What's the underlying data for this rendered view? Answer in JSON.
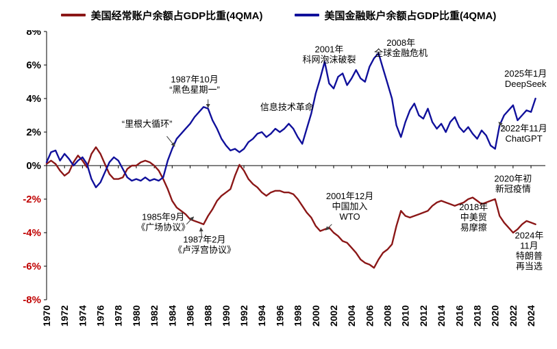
{
  "chart_data": {
    "type": "line",
    "title": "",
    "xlabel": "",
    "ylabel": "",
    "xlim": [
      1970,
      2025.6
    ],
    "ylim": [
      -8,
      8
    ],
    "grid": false,
    "legend_position": "top-center",
    "axis_color": "#000000",
    "negative_tick_color": "#C00000",
    "arrow_color": "#404040",
    "yticks": [
      {
        "v": 8,
        "label": "8%"
      },
      {
        "v": 6,
        "label": "6%"
      },
      {
        "v": 4,
        "label": "4%"
      },
      {
        "v": 2,
        "label": "2%"
      },
      {
        "v": 0,
        "label": "0%"
      },
      {
        "v": -2,
        "label": "-2%"
      },
      {
        "v": -4,
        "label": "-4%"
      },
      {
        "v": -6,
        "label": "-6%"
      },
      {
        "v": -8,
        "label": "-8%"
      }
    ],
    "xticks": [
      1970,
      1972,
      1974,
      1976,
      1978,
      1980,
      1982,
      1984,
      1986,
      1988,
      1990,
      1992,
      1994,
      1996,
      1998,
      2000,
      2002,
      2004,
      2006,
      2008,
      2010,
      2012,
      2014,
      2016,
      2018,
      2020,
      2022,
      2024
    ],
    "series": [
      {
        "name": "美国经常账户余额占GDP比重(4QMA)",
        "color": "#8B1717",
        "x_start": 1970,
        "x_step": 0.5,
        "values": [
          0.1,
          0.3,
          0.1,
          -0.3,
          -0.6,
          -0.4,
          0.2,
          0.6,
          0.3,
          -0.1,
          0.7,
          1.1,
          0.7,
          0.1,
          -0.5,
          -0.8,
          -0.8,
          -0.7,
          -0.2,
          0.0,
          0.0,
          0.2,
          0.3,
          0.2,
          0.0,
          -0.3,
          -0.8,
          -1.4,
          -2.1,
          -2.5,
          -2.7,
          -2.9,
          -3.2,
          -3.3,
          -3.4,
          -3.5,
          -3.0,
          -2.6,
          -2.1,
          -1.8,
          -1.6,
          -1.4,
          -0.6,
          0.05,
          -0.3,
          -0.8,
          -1.1,
          -1.3,
          -1.6,
          -1.8,
          -1.6,
          -1.5,
          -1.5,
          -1.6,
          -1.6,
          -1.7,
          -2.0,
          -2.4,
          -2.8,
          -3.1,
          -3.6,
          -3.9,
          -3.8,
          -3.7,
          -4.0,
          -4.2,
          -4.5,
          -4.6,
          -4.9,
          -5.2,
          -5.6,
          -5.8,
          -5.9,
          -6.1,
          -5.6,
          -5.2,
          -5.0,
          -4.7,
          -3.6,
          -2.7,
          -3.0,
          -3.1,
          -3.0,
          -2.9,
          -2.8,
          -2.7,
          -2.4,
          -2.2,
          -2.1,
          -2.2,
          -2.3,
          -2.4,
          -2.3,
          -2.2,
          -2.0,
          -1.9,
          -2.1,
          -2.3,
          -2.2,
          -2.1,
          -2.0,
          -3.0,
          -3.4,
          -3.7,
          -4.0,
          -3.8,
          -3.5,
          -3.3,
          -3.4,
          -3.5
        ]
      },
      {
        "name": "美国金融账户余额占GDP比重(4QMA)",
        "color": "#10109B",
        "x_start": 1970,
        "x_step": 0.5,
        "values": [
          0.2,
          0.8,
          0.9,
          0.3,
          0.7,
          0.4,
          0.0,
          0.3,
          0.5,
          0.1,
          -0.8,
          -1.3,
          -1.0,
          -0.4,
          0.2,
          0.5,
          0.3,
          -0.2,
          -0.7,
          -0.9,
          -0.8,
          -0.9,
          -0.7,
          -0.9,
          -0.8,
          -0.9,
          -0.7,
          0.3,
          1.0,
          1.6,
          1.9,
          2.2,
          2.5,
          2.9,
          3.2,
          3.5,
          3.4,
          2.7,
          2.2,
          1.6,
          1.2,
          0.9,
          1.0,
          0.8,
          1.0,
          1.4,
          1.6,
          1.9,
          2.0,
          1.7,
          1.9,
          2.2,
          2.0,
          2.2,
          2.5,
          2.2,
          1.7,
          1.3,
          2.2,
          3.1,
          4.3,
          5.2,
          6.2,
          4.9,
          4.6,
          5.3,
          5.5,
          4.8,
          5.2,
          5.7,
          5.2,
          5.0,
          5.9,
          6.4,
          6.7,
          5.8,
          4.9,
          4.0,
          2.4,
          1.7,
          2.6,
          3.3,
          3.7,
          3.0,
          2.8,
          3.4,
          2.6,
          2.2,
          2.5,
          2.0,
          2.6,
          2.9,
          2.3,
          2.0,
          2.3,
          1.9,
          1.6,
          2.1,
          1.8,
          1.2,
          1.0,
          2.4,
          3.0,
          3.3,
          3.6,
          2.7,
          3.0,
          3.3,
          3.2,
          4.0
        ]
      }
    ],
    "annotations": [
      {
        "lines": [
          "“里根大循环”"
        ],
        "x": 1981.2,
        "y": 2.3,
        "arrow": [
          1983.4,
          1.75,
          1984.3,
          1.15
        ]
      },
      {
        "lines": [
          "1987年10月",
          "“黑色星期一”"
        ],
        "x": 1986.5,
        "y": 4.95,
        "arrow": [
          1988.0,
          3.95,
          1988.0,
          3.45
        ]
      },
      {
        "lines": [
          "信息技术革命"
        ],
        "x": 1996.8,
        "y": 3.3
      },
      {
        "lines": [
          "2001年",
          "科网泡沫破裂"
        ],
        "x": 2001.5,
        "y": 6.75
      },
      {
        "lines": [
          "2008年",
          "全球金融危机"
        ],
        "x": 2009.5,
        "y": 7.15
      },
      {
        "lines": [
          "2025年1月",
          "DeepSeek"
        ],
        "x": 2023.4,
        "y": 5.3
      },
      {
        "lines": [
          "2022年11月",
          "ChatGPT"
        ],
        "x": 2023.2,
        "y": 2.05,
        "arrow": [
          2021.2,
          2.1,
          2020.4,
          2.6
        ]
      },
      {
        "lines": [
          "1985年9月",
          "《广场协议》"
        ],
        "x": 1983.0,
        "y": -3.25,
        "arrow": [
          1985.6,
          -3.5,
          1986.4,
          -3.05
        ]
      },
      {
        "lines": [
          "1987年2月",
          "《卢浮宫协议》"
        ],
        "x": 1987.6,
        "y": -4.6,
        "arrow": [
          1987.3,
          -4.25,
          1987.2,
          -3.7
        ]
      },
      {
        "lines": [
          "2001年12月",
          "中国加入",
          "WTO"
        ],
        "x": 2003.8,
        "y": -2.0,
        "arrow": [
          2001.8,
          -3.5,
          2001.1,
          -3.85
        ]
      },
      {
        "lines": [
          "2018年",
          "中美贸",
          "易摩擦"
        ],
        "x": 2017.6,
        "y": -2.65
      },
      {
        "lines": [
          "2020年初",
          "新冠疫情"
        ],
        "x": 2022.0,
        "y": -0.95
      },
      {
        "lines": [
          "2024年",
          "11月",
          "特朗普",
          "再当选"
        ],
        "x": 2023.8,
        "y": -4.35
      }
    ]
  }
}
